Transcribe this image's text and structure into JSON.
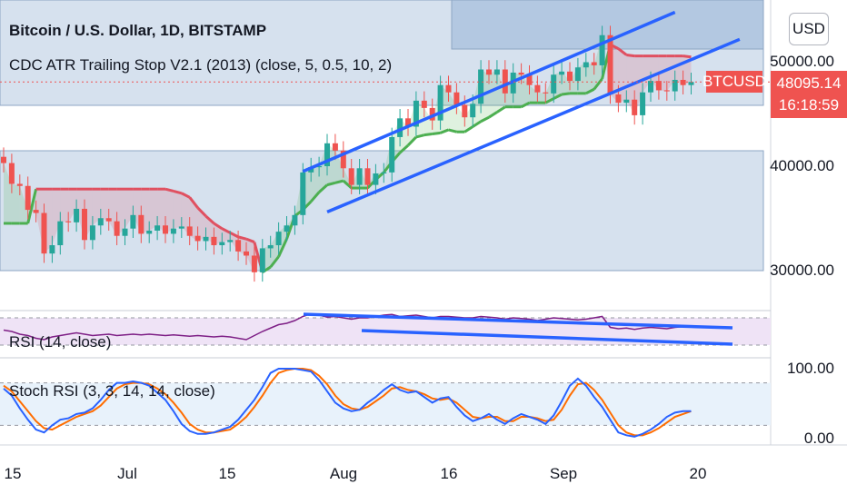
{
  "header": {
    "title": "Bitcoin / U.S. Dollar, 1D, BITSTAMP",
    "indicator": "CDC ATR Trailing Stop V2.1 (2013) (close, 5, 0.5, 10, 2)"
  },
  "currency_button": "USD",
  "last_price": {
    "symbol": "BTCUSD",
    "price": "48095.14",
    "countdown": "16:18:59"
  },
  "panes": {
    "rsi_label": "RSI (14, close)",
    "stoch_label": "Stoch RSI (3, 3, 14, 14, close)"
  },
  "colors": {
    "up": "#26a69a",
    "down": "#ef5350",
    "trend": "#2962ff",
    "stop_bull": "#4caf50",
    "stop_bear": "#e05060",
    "rsi": "#7e1f86",
    "stoch_k": "#2962ff",
    "stoch_d": "#ff6d00"
  },
  "chart_data": [
    {
      "type": "candlestick",
      "title": "Bitcoin / U.S. Dollar, 1D, BITSTAMP",
      "ylim": [
        26000,
        55000
      ],
      "y_ticks": [
        "50000.00",
        "40000.00",
        "30000.00"
      ],
      "x_ticks": [
        "15",
        "Jul",
        "15",
        "Aug",
        "16",
        "Sep",
        "20"
      ],
      "x_range": [
        "2021-06-15",
        "2021-09-20"
      ],
      "close": [
        40300,
        38300,
        38100,
        35800,
        35500,
        31600,
        32400,
        34700,
        34600,
        35900,
        32900,
        34300,
        35000,
        34700,
        33300,
        34000,
        35300,
        33500,
        33800,
        34300,
        33500,
        34000,
        34200,
        33300,
        32800,
        33200,
        32400,
        32700,
        32900,
        31800,
        31400,
        29800,
        32100,
        32400,
        33700,
        34300,
        35300,
        39400,
        39900,
        40000,
        42200,
        41500,
        39800,
        38200,
        39800,
        38200,
        39300,
        39400,
        42800,
        44600,
        43800,
        46300,
        45600,
        44400,
        47800,
        47100,
        45900,
        44700,
        46000,
        49300,
        48800,
        49300,
        47000,
        49000,
        48800,
        47800,
        47100,
        47000,
        48800,
        49100,
        48200,
        49500,
        50000,
        49700,
        52600,
        46900,
        46100,
        46400,
        44900,
        47100,
        48200,
        47300,
        47200,
        48300,
        47800,
        48100
      ],
      "stop_line": [
        34500,
        34500,
        34500,
        34500,
        37800,
        37800,
        37800,
        37800,
        37800,
        37800,
        37800,
        37800,
        37800,
        37800,
        37800,
        37800,
        37800,
        37800,
        37800,
        37800,
        37800,
        37600,
        37400,
        37000,
        36000,
        35200,
        34500,
        34000,
        33600,
        33200,
        33000,
        32700,
        29800,
        30300,
        31300,
        33000,
        35200,
        35800,
        36600,
        37500,
        38200,
        38400,
        38600,
        37900,
        37900,
        37900,
        38700,
        39400,
        40400,
        41300,
        42000,
        42800,
        43000,
        43100,
        43200,
        43500,
        43300,
        43300,
        43800,
        44300,
        44700,
        45200,
        45700,
        45700,
        45700,
        46100,
        46100,
        46100,
        46500,
        46900,
        47000,
        47000,
        47000,
        47400,
        48400,
        51700,
        51300,
        50700,
        50600,
        50600,
        50600,
        50600,
        50600,
        50600,
        50600,
        50500
      ],
      "stop_side": [
        "bull",
        "bull",
        "bull",
        "bull",
        "bear",
        "bear",
        "bear",
        "bear",
        "bear",
        "bear",
        "bear",
        "bear",
        "bear",
        "bear",
        "bear",
        "bear",
        "bear",
        "bear",
        "bear",
        "bear",
        "bear",
        "bear",
        "bear",
        "bear",
        "bear",
        "bear",
        "bear",
        "bear",
        "bear",
        "bear",
        "bear",
        "bear",
        "bull",
        "bull",
        "bull",
        "bull",
        "bull",
        "bull",
        "bull",
        "bull",
        "bull",
        "bull",
        "bull",
        "bull",
        "bull",
        "bull",
        "bull",
        "bull",
        "bull",
        "bull",
        "bull",
        "bull",
        "bull",
        "bull",
        "bull",
        "bull",
        "bull",
        "bull",
        "bull",
        "bull",
        "bull",
        "bull",
        "bull",
        "bull",
        "bull",
        "bull",
        "bull",
        "bull",
        "bull",
        "bull",
        "bull",
        "bull",
        "bull",
        "bull",
        "bull",
        "bear",
        "bear",
        "bear",
        "bear",
        "bear",
        "bear",
        "bear",
        "bear",
        "bear",
        "bear",
        "bear"
      ],
      "trend_lines": [
        {
          "from": [
            "2021-07-22",
            39500
          ],
          "to": [
            "2021-09-06",
            54800
          ]
        },
        {
          "from": [
            "2021-07-25",
            35600
          ],
          "to": [
            "2021-09-14",
            52200
          ]
        }
      ],
      "horizontal_level": 48095.14
    },
    {
      "type": "line",
      "title": "RSI (14, close)",
      "ylim": [
        0,
        100
      ],
      "values": [
        52,
        50,
        46,
        44,
        40,
        38,
        42,
        44,
        46,
        48,
        46,
        44,
        45,
        46,
        44,
        45,
        46,
        45,
        46,
        45,
        44,
        45,
        44,
        43,
        44,
        43,
        42,
        43,
        42,
        40,
        38,
        44,
        50,
        55,
        60,
        62,
        66,
        72,
        76,
        74,
        71,
        72,
        70,
        68,
        70,
        70,
        72,
        74,
        75,
        72,
        73,
        74,
        72,
        70,
        72,
        72,
        71,
        70,
        70,
        72,
        71,
        70,
        68,
        70,
        69,
        68,
        66,
        68,
        70,
        69,
        68,
        67,
        68,
        70,
        72,
        56,
        54,
        55,
        53,
        55,
        56,
        55,
        54,
        56,
        57,
        57
      ],
      "bands": [
        70,
        30
      ]
    },
    {
      "type": "line",
      "title": "Stoch RSI (3, 3, 14, 14, close)",
      "ylim": [
        0,
        100
      ],
      "y_ticks": [
        "100.00",
        "0.00"
      ],
      "series": [
        {
          "values": [
            72,
            62,
            44,
            28,
            14,
            10,
            20,
            28,
            30,
            36,
            38,
            44,
            56,
            70,
            80,
            80,
            82,
            80,
            76,
            66,
            56,
            40,
            22,
            12,
            8,
            8,
            10,
            14,
            18,
            28,
            42,
            56,
            74,
            94,
            100,
            100,
            100,
            98,
            96,
            84,
            68,
            52,
            44,
            40,
            42,
            52,
            60,
            70,
            78,
            70,
            66,
            68,
            60,
            52,
            58,
            60,
            46,
            34,
            26,
            30,
            36,
            28,
            22,
            30,
            36,
            32,
            28,
            22,
            34,
            54,
            76,
            86,
            76,
            60,
            46,
            28,
            10,
            6,
            4,
            8,
            14,
            22,
            32,
            38,
            40,
            40
          ]
        },
        {
          "values": [
            76,
            68,
            54,
            40,
            26,
            16,
            14,
            20,
            26,
            32,
            36,
            40,
            48,
            60,
            72,
            78,
            80,
            80,
            78,
            72,
            64,
            52,
            38,
            22,
            14,
            10,
            10,
            12,
            14,
            22,
            32,
            46,
            62,
            80,
            94,
            98,
            100,
            100,
            98,
            90,
            78,
            62,
            50,
            44,
            42,
            46,
            54,
            62,
            72,
            74,
            70,
            68,
            64,
            58,
            56,
            58,
            52,
            42,
            32,
            30,
            32,
            32,
            26,
            26,
            32,
            32,
            30,
            26,
            28,
            42,
            62,
            78,
            80,
            70,
            56,
            38,
            20,
            10,
            6,
            6,
            10,
            16,
            24,
            32,
            36,
            40
          ]
        }
      ],
      "bands": [
        80,
        20
      ]
    }
  ]
}
